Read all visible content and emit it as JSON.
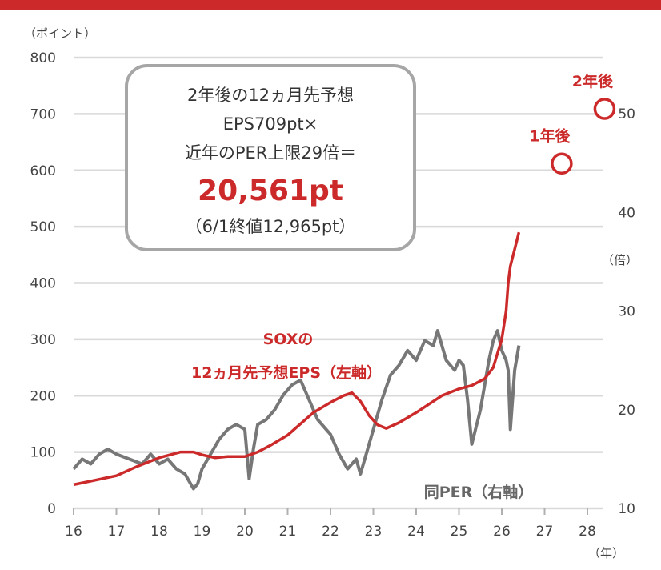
{
  "chart_data": {
    "type": "line",
    "x_ticks": [
      "16",
      "17",
      "18",
      "19",
      "20",
      "21",
      "22",
      "23",
      "24",
      "25",
      "26",
      "27",
      "28"
    ],
    "x_unit": "（年）",
    "xlim": [
      16,
      28
    ],
    "y_left_ticks": [
      "0",
      "100",
      "200",
      "300",
      "400",
      "500",
      "600",
      "700",
      "800"
    ],
    "y_left_unit": "（ポイント）",
    "ylim_left": [
      0,
      800
    ],
    "y_right_ticks": [
      "10",
      "20",
      "30",
      "40",
      "50"
    ],
    "y_right_unit": "（倍）",
    "ylim_right": [
      10,
      50
    ],
    "grid": true,
    "colors": {
      "eps": "#cc2a2a",
      "per": "#777777",
      "grid": "#d9d9d9",
      "accent": "#cc2a2a"
    },
    "series": [
      {
        "name": "SOXの",
        "name_line2": "12ヵ月先予想EPS（左軸）",
        "axis": "left",
        "x": [
          16.0,
          16.5,
          17.0,
          17.5,
          18.0,
          18.5,
          18.8,
          19.0,
          19.3,
          19.6,
          20.0,
          20.3,
          20.6,
          21.0,
          21.3,
          21.6,
          22.0,
          22.3,
          22.5,
          22.7,
          22.9,
          23.1,
          23.3,
          23.6,
          24.0,
          24.3,
          24.6,
          25.0,
          25.3,
          25.6,
          25.8,
          25.9,
          26.0,
          26.1,
          26.15,
          26.2,
          26.3,
          26.4
        ],
        "values": [
          42,
          50,
          58,
          75,
          90,
          100,
          100,
          95,
          90,
          92,
          92,
          100,
          112,
          130,
          150,
          170,
          188,
          200,
          205,
          190,
          165,
          148,
          142,
          152,
          170,
          185,
          200,
          212,
          218,
          230,
          250,
          275,
          300,
          350,
          400,
          430,
          460,
          490
        ]
      },
      {
        "name": "同PER（右軸）",
        "axis": "right",
        "x": [
          16.0,
          16.2,
          16.4,
          16.6,
          16.8,
          17.0,
          17.3,
          17.6,
          17.8,
          18.0,
          18.2,
          18.4,
          18.6,
          18.8,
          18.9,
          19.0,
          19.2,
          19.4,
          19.6,
          19.8,
          20.0,
          20.1,
          20.2,
          20.3,
          20.5,
          20.7,
          20.9,
          21.1,
          21.3,
          21.5,
          21.7,
          21.9,
          22.0,
          22.2,
          22.4,
          22.6,
          22.7,
          22.8,
          23.0,
          23.2,
          23.4,
          23.6,
          23.8,
          24.0,
          24.2,
          24.4,
          24.5,
          24.7,
          24.9,
          25.0,
          25.1,
          25.2,
          25.3,
          25.5,
          25.7,
          25.8,
          25.9,
          26.0,
          26.1,
          26.15,
          26.2,
          26.3,
          26.4
        ],
        "values": [
          14,
          15,
          14.5,
          15.5,
          16,
          15.5,
          15,
          14.5,
          15.5,
          14.5,
          15,
          14,
          13.5,
          12,
          12.5,
          14,
          15.5,
          17,
          18,
          18.5,
          18,
          13,
          16,
          18.5,
          19,
          20,
          21.5,
          22.5,
          23,
          21,
          19,
          18,
          17.5,
          15.5,
          14,
          15,
          13.5,
          15,
          18,
          21,
          23.5,
          24.5,
          26,
          25,
          27,
          26.5,
          28,
          25,
          24,
          25,
          24.5,
          21,
          16.5,
          20,
          25,
          27,
          28,
          26,
          25,
          24,
          18,
          24,
          26.5
        ]
      }
    ],
    "points": [
      {
        "label": "1年後",
        "x": 27.4,
        "value": 612
      },
      {
        "label": "2年後",
        "x": 28.4,
        "value": 709
      }
    ],
    "callout": {
      "line1": "2年後の12ヵ月先予想",
      "line2": "EPS709pt×",
      "line3": "近年のPER上限29倍＝",
      "value": "20,561pt",
      "note": "（6/1終値12,965pt）"
    }
  }
}
